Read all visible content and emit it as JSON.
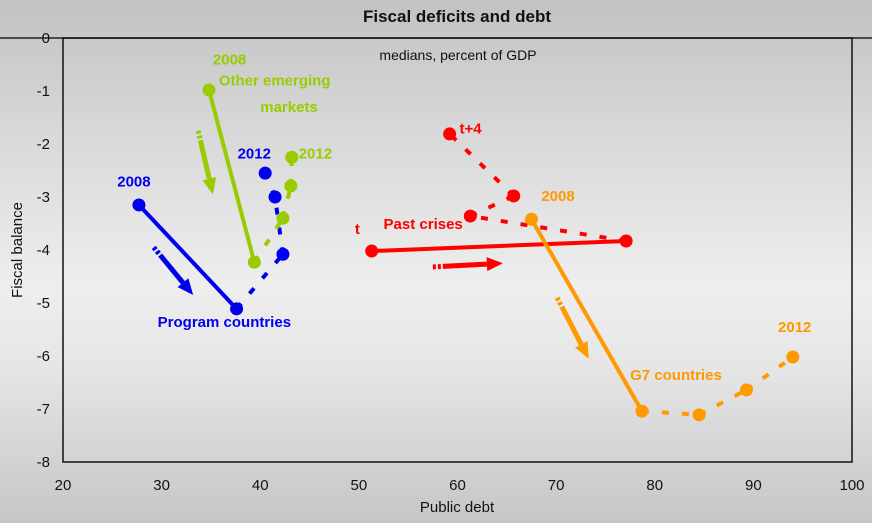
{
  "chart_data": {
    "type": "line",
    "title": "Fiscal deficits and debt",
    "subtitle": "medians, percent of GDP",
    "xlabel": "Public debt",
    "ylabel": "Fiscal balance",
    "xlim": [
      20,
      100
    ],
    "ylim": [
      -8,
      0
    ],
    "xticks": [
      20,
      30,
      40,
      50,
      60,
      70,
      80,
      90,
      100
    ],
    "yticks": [
      0,
      -1,
      -2,
      -3,
      -4,
      -5,
      -6,
      -7,
      -8
    ],
    "grid": false,
    "legend": "none (inline annotations)",
    "series": [
      {
        "name": "Program countries",
        "color": "#0000ee",
        "points": [
          [
            27.7,
            -3.15
          ],
          [
            37.6,
            -5.11
          ],
          [
            42.3,
            -4.08
          ],
          [
            41.5,
            -3.0
          ],
          [
            40.5,
            -2.55
          ]
        ],
        "solid_segments": 1,
        "start_label": "2008",
        "end_label": "2012",
        "arrow": [
          [
            29.2,
            -3.95
          ],
          [
            33.2,
            -4.85
          ]
        ]
      },
      {
        "name": "Other emerging markets",
        "color": "#99cc00",
        "points": [
          [
            34.8,
            -0.98
          ],
          [
            39.4,
            -4.23
          ],
          [
            42.3,
            -3.4
          ],
          [
            43.1,
            -2.79
          ],
          [
            43.2,
            -2.25
          ]
        ],
        "solid_segments": 1,
        "start_label": "2008",
        "end_label": "2012",
        "arrow": [
          [
            33.7,
            -1.75
          ],
          [
            35.2,
            -2.95
          ]
        ]
      },
      {
        "name": "Past crises",
        "color": "#ff0000",
        "points": [
          [
            51.3,
            -4.02
          ],
          [
            77.1,
            -3.83
          ],
          [
            61.3,
            -3.36
          ],
          [
            65.7,
            -2.98
          ],
          [
            59.2,
            -1.81
          ]
        ],
        "solid_segments": 1,
        "start_label": "t",
        "end_label": "t+4",
        "arrow": [
          [
            57.5,
            -4.32
          ],
          [
            64.6,
            -4.25
          ]
        ]
      },
      {
        "name": "G7 countries",
        "color": "#ff9900",
        "points": [
          [
            67.5,
            -3.42
          ],
          [
            78.7,
            -7.04
          ],
          [
            84.5,
            -7.11
          ],
          [
            89.3,
            -6.64
          ],
          [
            94.0,
            -6.02
          ]
        ],
        "solid_segments": 1,
        "start_label": "2008",
        "end_label": "2012",
        "arrow": [
          [
            70.1,
            -4.9
          ],
          [
            73.3,
            -6.05
          ]
        ]
      }
    ],
    "annotations": [
      {
        "text": "2008",
        "series": 0,
        "x": 25.5,
        "y": -2.8
      },
      {
        "text": "2012",
        "series": 0,
        "x": 37.7,
        "y": -2.27
      },
      {
        "text": "Program countries",
        "series": 0,
        "x": 29.6,
        "y": -5.45
      },
      {
        "text": "2008",
        "series": 1,
        "x": 35.2,
        "y": -0.5
      },
      {
        "text": "Other emerging",
        "series": 1,
        "x": 35.8,
        "y": -0.9
      },
      {
        "text": "markets",
        "series": 1,
        "x": 40.0,
        "y": -1.4
      },
      {
        "text": "2012",
        "series": 1,
        "x": 43.9,
        "y": -2.27
      },
      {
        "text": "t",
        "series": 2,
        "x": 49.6,
        "y": -3.7
      },
      {
        "text": "t+4",
        "series": 2,
        "x": 60.2,
        "y": -1.8
      },
      {
        "text": "Past crises",
        "series": 2,
        "x": 52.5,
        "y": -3.6
      },
      {
        "text": "2008",
        "series": 3,
        "x": 68.5,
        "y": -3.08
      },
      {
        "text": "2012",
        "series": 3,
        "x": 92.5,
        "y": -5.55
      },
      {
        "text": "G7 countries",
        "series": 3,
        "x": 77.5,
        "y": -6.45
      }
    ]
  }
}
